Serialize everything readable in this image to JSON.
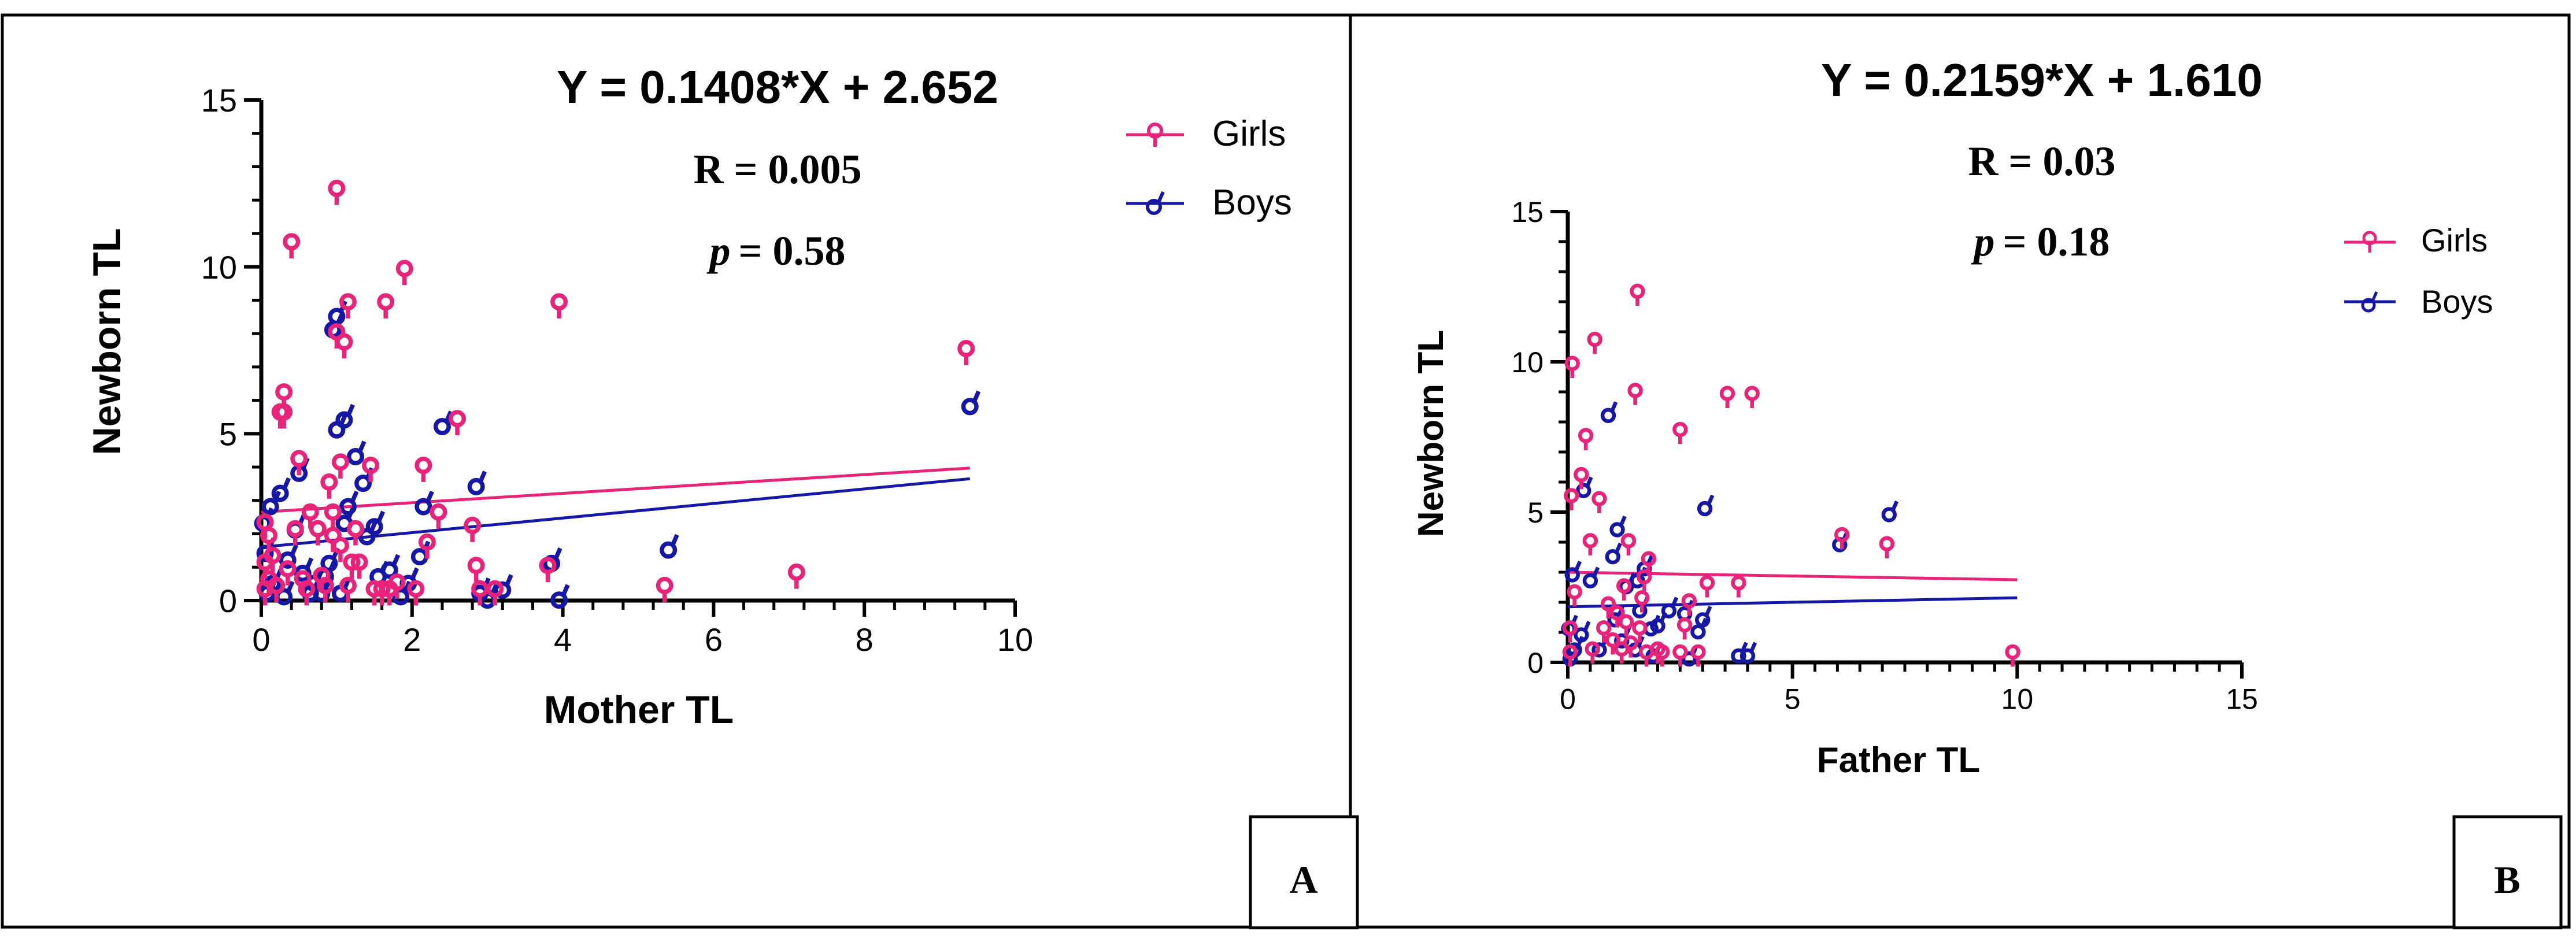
{
  "colors": {
    "girls": "#e8237a",
    "boys": "#1717a6",
    "axis": "#000000",
    "border": "#000000"
  },
  "chart_data": [
    {
      "panel": "A",
      "type": "scatter",
      "equation": "Y = 0.1408*X + 2.652",
      "r_text": "R = 0.005",
      "p_symbol": "p",
      "p_value": "= 0.58",
      "xlabel": "Mother TL",
      "ylabel": "Newborn TL",
      "xlim": [
        0,
        10
      ],
      "ylim": [
        0,
        15
      ],
      "xticks": [
        0,
        2,
        4,
        6,
        8,
        10
      ],
      "xtick_labels": [
        "0",
        "2",
        "4",
        "6",
        "8",
        "10"
      ],
      "yticks": [
        0,
        5,
        10,
        15
      ],
      "ytick_labels": [
        "0",
        "5",
        "10",
        "15"
      ],
      "legend": {
        "position": "top-right",
        "entries": [
          "Girls",
          "Boys"
        ]
      },
      "series": [
        {
          "name": "Girls",
          "points": [
            [
              0.05,
              0.2
            ],
            [
              0.05,
              1.0
            ],
            [
              0.05,
              2.2
            ],
            [
              0.1,
              1.8
            ],
            [
              0.1,
              0.5
            ],
            [
              0.15,
              1.2
            ],
            [
              0.2,
              0.3
            ],
            [
              0.25,
              5.5
            ],
            [
              0.3,
              6.1
            ],
            [
              0.3,
              5.5
            ],
            [
              0.35,
              0.8
            ],
            [
              0.4,
              10.6
            ],
            [
              0.45,
              2.0
            ],
            [
              0.5,
              4.1
            ],
            [
              0.55,
              0.5
            ],
            [
              0.6,
              0.2
            ],
            [
              0.65,
              2.5
            ],
            [
              0.75,
              2.0
            ],
            [
              0.8,
              0.6
            ],
            [
              0.85,
              0.3
            ],
            [
              0.9,
              3.4
            ],
            [
              0.95,
              2.5
            ],
            [
              0.95,
              1.8
            ],
            [
              1.0,
              12.2
            ],
            [
              1.0,
              7.9
            ],
            [
              1.05,
              4.0
            ],
            [
              1.05,
              1.5
            ],
            [
              1.1,
              7.6
            ],
            [
              1.15,
              0.3
            ],
            [
              1.15,
              8.8
            ],
            [
              1.2,
              1.0
            ],
            [
              1.25,
              2.0
            ],
            [
              1.3,
              1.0
            ],
            [
              1.45,
              3.9
            ],
            [
              1.5,
              0.2
            ],
            [
              1.6,
              0.2
            ],
            [
              1.65,
              8.8
            ],
            [
              1.7,
              0.2
            ],
            [
              1.8,
              0.4
            ],
            [
              1.9,
              9.8
            ],
            [
              2.05,
              0.2
            ],
            [
              2.15,
              3.9
            ],
            [
              2.2,
              1.6
            ],
            [
              2.35,
              2.5
            ],
            [
              2.6,
              5.3
            ],
            [
              2.8,
              2.1
            ],
            [
              2.85,
              0.9
            ],
            [
              2.9,
              0.2
            ],
            [
              3.1,
              0.2
            ],
            [
              3.8,
              0.9
            ],
            [
              3.95,
              8.8
            ],
            [
              5.35,
              0.3
            ],
            [
              7.1,
              0.7
            ],
            [
              9.35,
              7.4
            ]
          ]
        },
        {
          "name": "Boys",
          "points": [
            [
              0.02,
              2.4
            ],
            [
              0.05,
              1.5
            ],
            [
              0.08,
              0.3
            ],
            [
              0.12,
              2.9
            ],
            [
              0.15,
              0.6
            ],
            [
              0.25,
              3.3
            ],
            [
              0.3,
              0.2
            ],
            [
              0.35,
              1.3
            ],
            [
              0.45,
              2.2
            ],
            [
              0.5,
              3.9
            ],
            [
              0.55,
              0.9
            ],
            [
              0.65,
              0.3
            ],
            [
              0.7,
              0.6
            ],
            [
              0.8,
              0.3
            ],
            [
              0.85,
              0.8
            ],
            [
              0.9,
              1.2
            ],
            [
              0.95,
              8.2
            ],
            [
              1.0,
              8.6
            ],
            [
              1.0,
              5.2
            ],
            [
              1.05,
              0.3
            ],
            [
              1.1,
              5.5
            ],
            [
              1.1,
              2.4
            ],
            [
              1.15,
              2.9
            ],
            [
              1.25,
              4.4
            ],
            [
              1.35,
              3.6
            ],
            [
              1.4,
              2.0
            ],
            [
              1.5,
              2.3
            ],
            [
              1.55,
              0.8
            ],
            [
              1.7,
              1.0
            ],
            [
              1.85,
              0.2
            ],
            [
              1.95,
              0.6
            ],
            [
              2.1,
              1.4
            ],
            [
              2.15,
              2.9
            ],
            [
              2.4,
              5.3
            ],
            [
              2.85,
              3.5
            ],
            [
              2.9,
              0.3
            ],
            [
              3.0,
              0.1
            ],
            [
              3.2,
              0.4
            ],
            [
              3.85,
              1.2
            ],
            [
              3.95,
              0.1
            ],
            [
              5.4,
              1.6
            ],
            [
              9.4,
              5.9
            ]
          ]
        }
      ],
      "fit_lines": [
        {
          "name": "Girls",
          "x": [
            0,
            9.4
          ],
          "y": [
            2.65,
            3.97
          ]
        },
        {
          "name": "Boys",
          "x": [
            0,
            9.4
          ],
          "y": [
            1.6,
            3.65
          ]
        }
      ]
    },
    {
      "panel": "B",
      "type": "scatter",
      "equation": "Y = 0.2159*X + 1.610",
      "r_text": "R = 0.03",
      "p_symbol": "p",
      "p_value": "= 0.18",
      "xlabel": "Father TL",
      "ylabel": "Newborn TL",
      "xlim": [
        0,
        15
      ],
      "ylim": [
        0,
        15
      ],
      "xticks": [
        0,
        5,
        10,
        15
      ],
      "xtick_labels": [
        "0",
        "5",
        "10",
        "15"
      ],
      "yticks": [
        0,
        5,
        10,
        15
      ],
      "ytick_labels": [
        "0",
        "5",
        "10",
        "15"
      ],
      "legend": {
        "position": "right",
        "entries": [
          "Girls",
          "Boys"
        ]
      },
      "series": [
        {
          "name": "Girls",
          "points": [
            [
              0.05,
              0.2
            ],
            [
              0.05,
              1.0
            ],
            [
              0.08,
              5.4
            ],
            [
              0.1,
              9.8
            ],
            [
              0.15,
              2.2
            ],
            [
              0.3,
              6.1
            ],
            [
              0.4,
              7.4
            ],
            [
              0.5,
              3.9
            ],
            [
              0.55,
              0.3
            ],
            [
              0.6,
              10.6
            ],
            [
              0.7,
              5.3
            ],
            [
              0.8,
              1.0
            ],
            [
              0.9,
              1.8
            ],
            [
              1.0,
              0.6
            ],
            [
              1.1,
              1.5
            ],
            [
              1.2,
              0.3
            ],
            [
              1.25,
              2.4
            ],
            [
              1.3,
              1.2
            ],
            [
              1.35,
              3.9
            ],
            [
              1.4,
              0.5
            ],
            [
              1.5,
              8.9
            ],
            [
              1.55,
              12.2
            ],
            [
              1.6,
              1.0
            ],
            [
              1.65,
              2.0
            ],
            [
              1.7,
              2.7
            ],
            [
              1.75,
              0.2
            ],
            [
              1.8,
              3.3
            ],
            [
              2.0,
              0.3
            ],
            [
              2.1,
              0.2
            ],
            [
              2.5,
              7.6
            ],
            [
              2.5,
              0.2
            ],
            [
              2.6,
              1.1
            ],
            [
              2.7,
              1.9
            ],
            [
              2.9,
              0.2
            ],
            [
              3.1,
              2.5
            ],
            [
              3.55,
              8.8
            ],
            [
              3.8,
              2.5
            ],
            [
              4.1,
              8.8
            ],
            [
              6.1,
              4.1
            ],
            [
              7.1,
              3.8
            ],
            [
              9.9,
              0.2
            ]
          ]
        },
        {
          "name": "Boys",
          "points": [
            [
              0.02,
              1.2
            ],
            [
              0.05,
              0.2
            ],
            [
              0.1,
              3.0
            ],
            [
              0.15,
              0.5
            ],
            [
              0.3,
              1.0
            ],
            [
              0.35,
              5.8
            ],
            [
              0.5,
              2.8
            ],
            [
              0.7,
              0.5
            ],
            [
              0.9,
              8.3
            ],
            [
              1.0,
              3.6
            ],
            [
              1.05,
              1.5
            ],
            [
              1.1,
              4.5
            ],
            [
              1.2,
              0.8
            ],
            [
              1.3,
              2.6
            ],
            [
              1.5,
              0.5
            ],
            [
              1.55,
              2.8
            ],
            [
              1.6,
              1.8
            ],
            [
              1.7,
              3.2
            ],
            [
              1.85,
              1.2
            ],
            [
              1.9,
              0.3
            ],
            [
              2.0,
              1.3
            ],
            [
              2.25,
              1.8
            ],
            [
              2.6,
              1.7
            ],
            [
              2.7,
              0.2
            ],
            [
              2.9,
              1.1
            ],
            [
              3.0,
              1.5
            ],
            [
              3.05,
              5.2
            ],
            [
              3.8,
              0.3
            ],
            [
              4.0,
              0.3
            ],
            [
              6.05,
              4.0
            ],
            [
              7.15,
              5.0
            ]
          ]
        }
      ],
      "fit_lines": [
        {
          "name": "Girls",
          "x": [
            0,
            10
          ],
          "y": [
            3.0,
            2.75
          ]
        },
        {
          "name": "Boys",
          "x": [
            0,
            10
          ],
          "y": [
            1.85,
            2.15
          ]
        }
      ]
    }
  ]
}
